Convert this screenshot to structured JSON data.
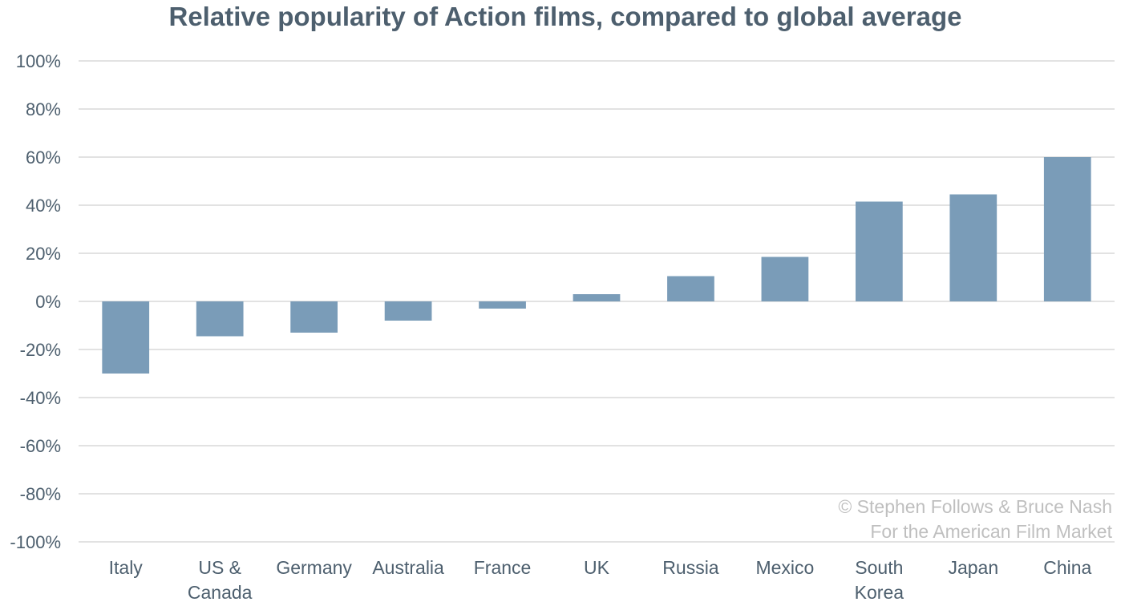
{
  "chart_data": {
    "type": "bar",
    "title": "Relative popularity of Action films, compared to global average",
    "xlabel": "",
    "ylabel": "",
    "ylim": [
      -100,
      100
    ],
    "y_ticks": [
      100,
      80,
      60,
      40,
      20,
      0,
      -20,
      -40,
      -60,
      -80,
      -100
    ],
    "y_tick_labels": [
      "100%",
      "80%",
      "60%",
      "40%",
      "20%",
      "0%",
      "-20%",
      "-40%",
      "-60%",
      "-80%",
      "-100%"
    ],
    "grid": true,
    "categories": [
      [
        "Italy"
      ],
      [
        "US &",
        "Canada"
      ],
      [
        "Germany"
      ],
      [
        "Australia"
      ],
      [
        "France"
      ],
      [
        "UK"
      ],
      [
        "Russia"
      ],
      [
        "Mexico"
      ],
      [
        "South",
        "Korea"
      ],
      [
        "Japan"
      ],
      [
        "China"
      ]
    ],
    "values": [
      -30,
      -14.5,
      -13,
      -8,
      -3,
      3,
      10.5,
      18.5,
      41.5,
      44.5,
      60
    ],
    "bar_color": "#7a9cb8"
  },
  "credit": {
    "line1": "© Stephen Follows & Bruce Nash",
    "line2": "For the American Film Market"
  }
}
